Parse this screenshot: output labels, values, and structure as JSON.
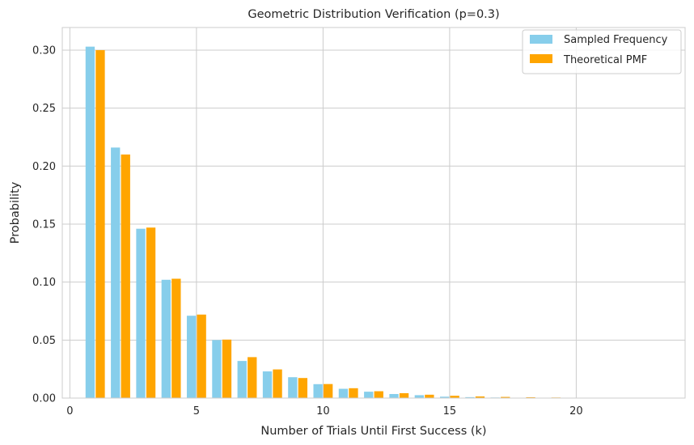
{
  "chart_data": {
    "type": "bar",
    "title": "Geometric Distribution Verification (p=0.3)",
    "xlabel": "Number of Trials Until First Success (k)",
    "ylabel": "Probability",
    "xlim": [
      -0.3,
      24.3
    ],
    "ylim": [
      0,
      0.3195
    ],
    "xticks": [
      0,
      5,
      10,
      15,
      20
    ],
    "yticks": [
      0.0,
      0.05,
      0.1,
      0.15,
      0.2,
      0.25,
      0.3
    ],
    "ytick_labels": [
      "0.00",
      "0.05",
      "0.10",
      "0.15",
      "0.20",
      "0.25",
      "0.30"
    ],
    "grid": true,
    "legend_position": "top-right",
    "categories": [
      1,
      2,
      3,
      4,
      5,
      6,
      7,
      8,
      9,
      10,
      11,
      12,
      13,
      14,
      15,
      16,
      17,
      18,
      19,
      20,
      21,
      22,
      23
    ],
    "series": [
      {
        "name": "Sampled Frequency",
        "color": "#87ceeb",
        "values": [
          0.303,
          0.216,
          0.146,
          0.102,
          0.071,
          0.05,
          0.032,
          0.023,
          0.018,
          0.012,
          0.008,
          0.0055,
          0.0035,
          0.0025,
          0.0012,
          0.0008,
          0.0005,
          0.0003,
          0.0002,
          0.0001,
          0.0001,
          0.0001,
          5e-05
        ]
      },
      {
        "name": "Theoretical PMF",
        "color": "#ffa500",
        "values": [
          0.3,
          0.21,
          0.147,
          0.1029,
          0.072,
          0.0504,
          0.0353,
          0.0247,
          0.0173,
          0.0121,
          0.0085,
          0.0059,
          0.0042,
          0.0029,
          0.002,
          0.0014,
          0.001,
          0.0007,
          0.0005,
          0.0003,
          0.0002,
          0.0002,
          0.0001
        ]
      }
    ]
  }
}
